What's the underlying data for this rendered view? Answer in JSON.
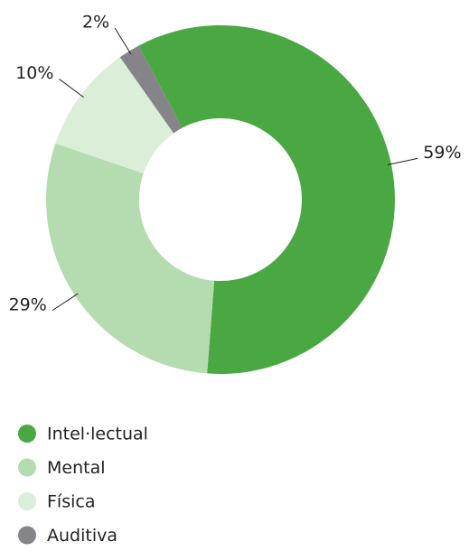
{
  "chart_data": {
    "type": "donut",
    "categories": [
      "Intel·lectual",
      "Mental",
      "Física",
      "Auditiva"
    ],
    "values": [
      59,
      29,
      10,
      2
    ],
    "value_labels": [
      "59%",
      "29%",
      "10%",
      "2%"
    ],
    "colors": [
      "#4aa842",
      "#b5dcb1",
      "#dbeed8",
      "#858589"
    ],
    "legend": "bottom-left"
  }
}
